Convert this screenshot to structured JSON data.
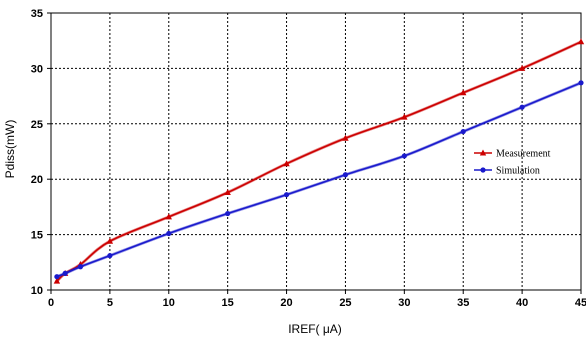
{
  "chart_data": {
    "type": "line",
    "title": "",
    "xlabel": "IREF(  μA)",
    "ylabel": "Pdiss(mW)",
    "xlim": [
      0,
      45
    ],
    "ylim": [
      10,
      35
    ],
    "xticks": [
      "0",
      "5",
      "10",
      "15",
      "20",
      "25",
      "30",
      "35",
      "40",
      "45"
    ],
    "yticks": [
      "10",
      "15",
      "20",
      "25",
      "30",
      "35"
    ],
    "grid": true,
    "legend_position": "right",
    "series": [
      {
        "name": "Measurement",
        "color": "#cc0000",
        "marker": "triangle",
        "x": [
          0.5,
          1.2,
          2.5,
          5,
          10,
          15,
          20,
          25,
          30,
          35,
          40,
          45
        ],
        "y": [
          10.8,
          11.5,
          12.3,
          14.4,
          16.6,
          18.8,
          21.4,
          23.7,
          25.6,
          27.8,
          30.0,
          32.4
        ]
      },
      {
        "name": "Simulation",
        "color": "#1a1acc",
        "marker": "circle",
        "x": [
          0.5,
          1.2,
          2.5,
          5,
          10,
          15,
          20,
          25,
          30,
          35,
          40,
          45
        ],
        "y": [
          11.2,
          11.5,
          12.1,
          13.1,
          15.1,
          16.9,
          18.6,
          20.4,
          22.1,
          24.3,
          26.5,
          28.7
        ]
      }
    ]
  }
}
